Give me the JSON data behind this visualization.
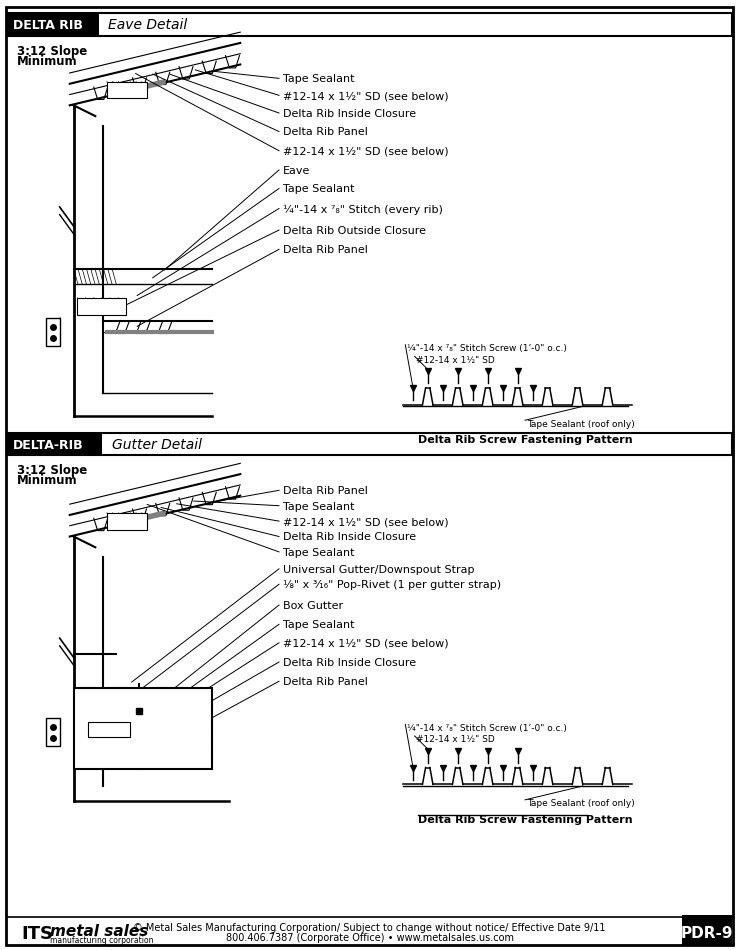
{
  "title1_box": "DELTA RIB",
  "title1_sub": "Eave Detail",
  "title2_box": "DELTA-RIB",
  "title2_sub": "Gutter Detail",
  "eave_labels": [
    "Tape Sealant",
    "#12-14 x 1½\" SD (see below)",
    "Delta Rib Inside Closure",
    "Delta Rib Panel",
    "#12-14 x 1½\" SD (see below)",
    "Eave",
    "Tape Sealant",
    "¼\"-14 x ⁷₈\" Stitch (every rib)",
    "Delta Rib Outside Closure",
    "Delta Rib Panel"
  ],
  "gutter_labels": [
    "Delta Rib Panel",
    "Tape Sealant",
    "#12-14 x 1½\" SD (see below)",
    "Delta Rib Inside Closure",
    "Tape Sealant",
    "Universal Gutter/Downspout Strap",
    "⅛\" x ³⁄₁₆\" Pop-Rivet (1 per gutter strap)",
    "Box Gutter",
    "Tape Sealant",
    "#12-14 x 1½\" SD (see below)",
    "Delta Rib Inside Closure",
    "Delta Rib Panel"
  ],
  "fast_stitch": "¼\"-14 x ⁷₈\" Stitch Screw (1’-0\" o.c.)",
  "fast_sd": "#12-14 x 1½\" SD",
  "fast_tape": "Tape Sealant (roof only)",
  "fast_title": "Delta Rib Screw Fastening Pattern",
  "footer_copy": "© Metal Sales Manufacturing Corporation/ Subject to change without notice/ Effective Date 9/11",
  "footer_phone": "800.406.7387 (Corporate Office) • www.metalsales.us.com",
  "footer_page": "PDR-9"
}
